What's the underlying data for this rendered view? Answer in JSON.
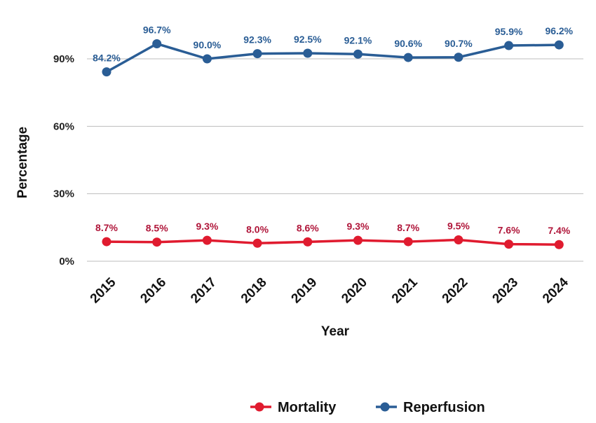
{
  "chart_data": {
    "type": "line",
    "title": "",
    "xlabel": "Year",
    "ylabel": "Percentage",
    "x": [
      "2015",
      "2016",
      "2017",
      "2018",
      "2019",
      "2020",
      "2021",
      "2022",
      "2023",
      "2024"
    ],
    "ylim": [
      0,
      100
    ],
    "yticks": [
      "0%",
      "30%",
      "60%",
      "90%"
    ],
    "ytick_values": [
      0,
      30,
      60,
      90
    ],
    "grid": true,
    "legend_position": "bottom",
    "series": [
      {
        "name": "Mortality",
        "color": "#e01b2f",
        "label_color": "#b0163a",
        "values": [
          8.7,
          8.5,
          9.3,
          8.0,
          8.6,
          9.3,
          8.7,
          9.5,
          7.6,
          7.4
        ],
        "labels": [
          "8.7%",
          "8.5%",
          "9.3%",
          "8.0%",
          "8.6%",
          "9.3%",
          "8.7%",
          "9.5%",
          "7.6%",
          "7.4%"
        ]
      },
      {
        "name": "Reperfusion",
        "color": "#2a5d95",
        "label_color": "#2a5d95",
        "values": [
          84.2,
          96.7,
          90.0,
          92.3,
          92.5,
          92.1,
          90.6,
          90.7,
          95.9,
          96.2
        ],
        "labels": [
          "84.2%",
          "96.7%",
          "90.0%",
          "92.3%",
          "92.5%",
          "92.1%",
          "90.6%",
          "90.7%",
          "95.9%",
          "96.2%"
        ]
      }
    ]
  }
}
